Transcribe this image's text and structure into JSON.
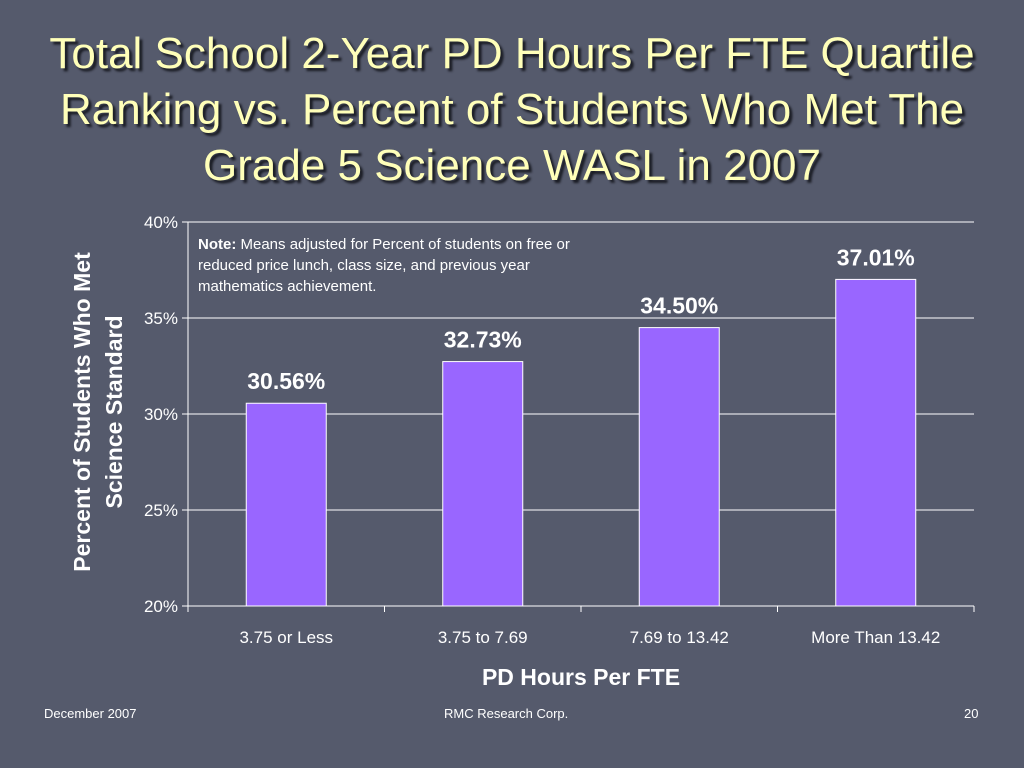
{
  "slide": {
    "title_lines": [
      "Total School 2-Year PD Hours Per FTE Quartile",
      "Ranking vs. Percent of Students Who Met The",
      "Grade 5 Science WASL in 2007"
    ],
    "note_label": "Note:",
    "note_text": "Means adjusted for Percent of students on free or reduced price lunch, class size, and previous year mathematics achievement.",
    "footer_left": "December 2007",
    "footer_center": "RMC Research Corp.",
    "footer_right": "20"
  },
  "colors": {
    "background": "#555a6c",
    "bar": "#9966ff",
    "title": "#ffffb9",
    "grid": "#ffffff"
  },
  "chart_data": {
    "type": "bar",
    "categories": [
      "3.75 or Less",
      "3.75 to 7.69",
      "7.69 to 13.42",
      "More Than 13.42"
    ],
    "values": [
      30.56,
      32.73,
      34.5,
      37.01
    ],
    "data_labels": [
      "30.56%",
      "32.73%",
      "34.50%",
      "37.01%"
    ],
    "xlabel": "PD Hours Per FTE",
    "ylabel_lines": [
      "Percent of Students Who Met",
      "Science Standard"
    ],
    "ylim": [
      20,
      40
    ],
    "yticks": [
      20,
      25,
      30,
      35,
      40
    ],
    "ytick_labels": [
      "20%",
      "25%",
      "30%",
      "35%",
      "40%"
    ],
    "grid": true
  }
}
